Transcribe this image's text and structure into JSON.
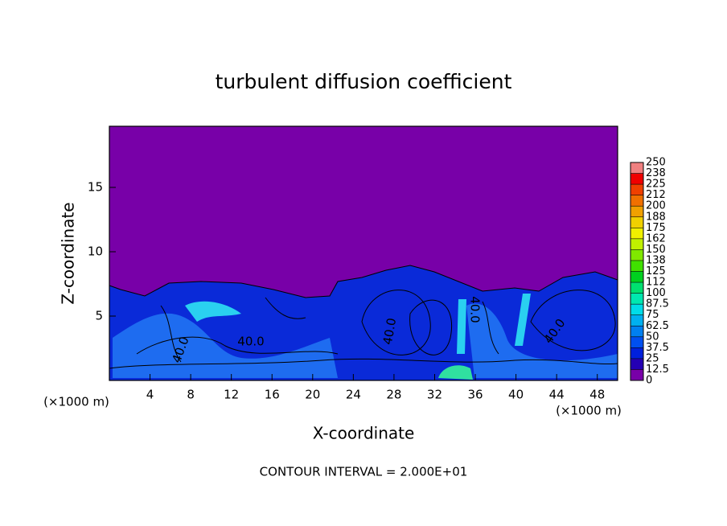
{
  "chart_data": {
    "type": "contour",
    "title": "turbulent diffusion coefficient",
    "x_label": "X-coordinate",
    "y_label": "Z-coordinate",
    "y_unit": "(×1000 m)",
    "x_unit": "(×1000 m)",
    "xlim": [
      0,
      50
    ],
    "ylim": [
      0,
      19.75
    ],
    "xticks": [
      4,
      8,
      12,
      16,
      20,
      24,
      28,
      32,
      36,
      40,
      44,
      48
    ],
    "yticks": [
      5,
      10,
      15
    ],
    "colorbar": {
      "ticks": [
        0,
        12.5,
        25,
        37.5,
        50,
        62.5,
        75,
        87.5,
        100,
        {
          "value": 112.5,
          "label": "112"
        },
        125,
        {
          "value": 137.5,
          "label": "138"
        },
        150,
        {
          "value": 162.5,
          "label": "162"
        },
        175,
        {
          "value": 187.5,
          "label": "188"
        },
        200,
        {
          "value": 212.5,
          "label": "212"
        },
        225,
        {
          "value": 237.5,
          "label": "238"
        },
        250
      ],
      "colors": [
        "#7800a8",
        "#2400b4",
        "#0020dc",
        "#0050f0",
        "#0080f0",
        "#00b0f0",
        "#00dce8",
        "#00e8b0",
        "#00e070",
        "#00d020",
        "#40e000",
        "#80e800",
        "#c0f000",
        "#f0f000",
        "#f0d000",
        "#f0a000",
        "#f07000",
        "#f04000",
        "#f00000",
        "#f08080"
      ]
    },
    "contour_labels": [
      "40.0",
      "40.0",
      "40.0",
      "40.0",
      "40.0"
    ],
    "note": "CONTOUR INTERVAL = 2.000E+01"
  }
}
